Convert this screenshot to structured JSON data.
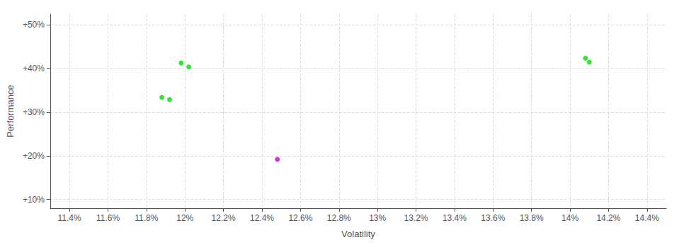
{
  "chart_data": {
    "type": "scatter",
    "xlabel": "Volatility",
    "ylabel": "Performance",
    "xlim": [
      0.113,
      0.145
    ],
    "xticks": [
      {
        "value": 0.114,
        "label": "11.4%"
      },
      {
        "value": 0.116,
        "label": "11.6%"
      },
      {
        "value": 0.118,
        "label": "11.8%"
      },
      {
        "value": 0.12,
        "label": "12%"
      },
      {
        "value": 0.122,
        "label": "12.2%"
      },
      {
        "value": 0.124,
        "label": "12.4%"
      },
      {
        "value": 0.126,
        "label": "12.6%"
      },
      {
        "value": 0.128,
        "label": "12.8%"
      },
      {
        "value": 0.13,
        "label": "13%"
      },
      {
        "value": 0.132,
        "label": "13.2%"
      },
      {
        "value": 0.134,
        "label": "13.4%"
      },
      {
        "value": 0.136,
        "label": "13.6%"
      },
      {
        "value": 0.138,
        "label": "13.8%"
      },
      {
        "value": 0.14,
        "label": "14%"
      },
      {
        "value": 0.142,
        "label": "14.2%"
      },
      {
        "value": 0.144,
        "label": "14.4%"
      }
    ],
    "ylim": [
      0.08,
      0.525
    ],
    "yticks": [
      {
        "value": 0.1,
        "label": "+10%"
      },
      {
        "value": 0.2,
        "label": "+20%"
      },
      {
        "value": 0.3,
        "label": "+30%"
      },
      {
        "value": 0.4,
        "label": "+40%"
      },
      {
        "value": 0.5,
        "label": "+50%"
      }
    ],
    "grid": true,
    "series": [
      {
        "color": "#00dd00",
        "x": [
          0.1188,
          0.1192,
          0.1198,
          0.1202,
          0.1408,
          0.141
        ],
        "values": [
          0.334,
          0.329,
          0.413,
          0.404,
          0.424,
          0.415
        ]
      },
      {
        "color": "#cc00cc",
        "x": [
          0.1248
        ],
        "values": [
          0.192
        ]
      }
    ]
  }
}
